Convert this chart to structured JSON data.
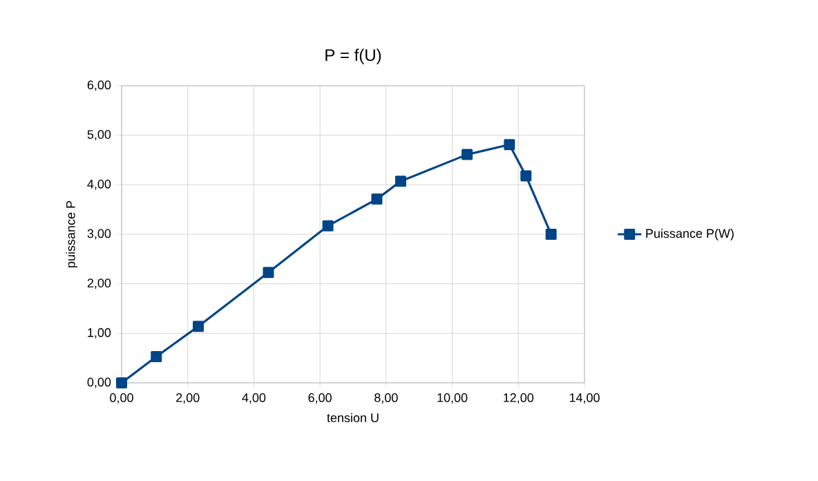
{
  "chart_data": {
    "type": "line",
    "title": "P = f(U)",
    "xlabel": "tension U",
    "ylabel": "puissance P",
    "x": [
      0,
      1.05,
      2.32,
      4.44,
      6.24,
      7.72,
      8.44,
      10.45,
      11.73,
      12.23,
      12.99
    ],
    "series": [
      {
        "name": "Puissance P(W)",
        "color": "#004586",
        "values": [
          0,
          0.53,
          1.14,
          2.23,
          3.17,
          3.71,
          4.07,
          4.61,
          4.81,
          4.18,
          3.0
        ]
      }
    ],
    "xlim": [
      0,
      14
    ],
    "ylim": [
      0,
      6
    ],
    "xticks": [
      {
        "value": 0,
        "label": "0,00"
      },
      {
        "value": 2,
        "label": "2,00"
      },
      {
        "value": 4,
        "label": "4,00"
      },
      {
        "value": 6,
        "label": "6,00"
      },
      {
        "value": 8,
        "label": "8,00"
      },
      {
        "value": 10,
        "label": "10,00"
      },
      {
        "value": 12,
        "label": "12,00"
      },
      {
        "value": 14,
        "label": "14,00"
      }
    ],
    "yticks": [
      {
        "value": 0,
        "label": "0,00"
      },
      {
        "value": 1,
        "label": "1,00"
      },
      {
        "value": 2,
        "label": "2,00"
      },
      {
        "value": 3,
        "label": "3,00"
      },
      {
        "value": 4,
        "label": "4,00"
      },
      {
        "value": 5,
        "label": "5,00"
      },
      {
        "value": 6,
        "label": "6,00"
      }
    ],
    "grid": true,
    "legend": "right",
    "marker": "square",
    "line_style": "solid"
  }
}
